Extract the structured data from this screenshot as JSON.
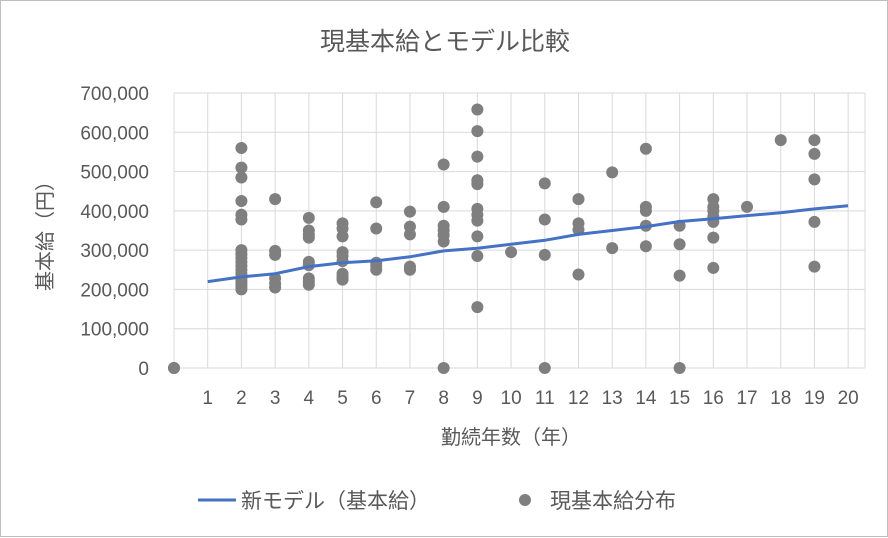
{
  "chart_data": {
    "type": "scatter",
    "title": "現基本給とモデル比較",
    "xlabel": "勤続年数（年）",
    "ylabel": "基本給（円）",
    "xlim": [
      0,
      20.5
    ],
    "ylim": [
      0,
      700000
    ],
    "xticks": [
      1,
      2,
      3,
      4,
      5,
      6,
      7,
      8,
      9,
      10,
      11,
      12,
      13,
      14,
      15,
      16,
      17,
      18,
      19,
      20
    ],
    "yticks": [
      0,
      100000,
      200000,
      300000,
      400000,
      500000,
      600000,
      700000
    ],
    "ytick_labels": [
      "0",
      "100,000",
      "200,000",
      "300,000",
      "400,000",
      "500,000",
      "600,000",
      "700,000"
    ],
    "grid": true,
    "legend": "bottom",
    "colors": {
      "line": "#4472c4",
      "points": "#7f7f7f",
      "grid": "#d9d9d9"
    },
    "series": [
      {
        "name": "新モデル（基本給）",
        "kind": "line",
        "x": [
          1,
          2,
          3,
          4,
          5,
          6,
          7,
          8,
          9,
          10,
          11,
          12,
          13,
          14,
          15,
          16,
          17,
          18,
          19,
          20
        ],
        "y": [
          220000,
          232000,
          240000,
          258000,
          268000,
          273000,
          283000,
          298000,
          305000,
          315000,
          325000,
          340000,
          350000,
          360000,
          373000,
          380000,
          388000,
          395000,
          405000,
          413000
        ]
      },
      {
        "name": "現基本給分布",
        "kind": "scatter",
        "points": [
          [
            0,
            0
          ],
          [
            0,
            0
          ],
          [
            2,
            560000
          ],
          [
            2,
            510000
          ],
          [
            2,
            485000
          ],
          [
            2,
            425000
          ],
          [
            2,
            390000
          ],
          [
            2,
            378000
          ],
          [
            2,
            300000
          ],
          [
            2,
            290000
          ],
          [
            2,
            280000
          ],
          [
            2,
            270000
          ],
          [
            2,
            260000
          ],
          [
            2,
            250000
          ],
          [
            2,
            240000
          ],
          [
            2,
            230000
          ],
          [
            2,
            222000
          ],
          [
            2,
            215000
          ],
          [
            2,
            208000
          ],
          [
            2,
            200000
          ],
          [
            3,
            430000
          ],
          [
            3,
            298000
          ],
          [
            3,
            288000
          ],
          [
            3,
            228000
          ],
          [
            3,
            215000
          ],
          [
            3,
            205000
          ],
          [
            4,
            382000
          ],
          [
            4,
            350000
          ],
          [
            4,
            340000
          ],
          [
            4,
            332000
          ],
          [
            4,
            270000
          ],
          [
            4,
            262000
          ],
          [
            4,
            228000
          ],
          [
            4,
            220000
          ],
          [
            4,
            212000
          ],
          [
            5,
            368000
          ],
          [
            5,
            355000
          ],
          [
            5,
            335000
          ],
          [
            5,
            295000
          ],
          [
            5,
            285000
          ],
          [
            5,
            272000
          ],
          [
            5,
            240000
          ],
          [
            5,
            232000
          ],
          [
            5,
            225000
          ],
          [
            6,
            422000
          ],
          [
            6,
            355000
          ],
          [
            6,
            268000
          ],
          [
            6,
            260000
          ],
          [
            6,
            250000
          ],
          [
            7,
            398000
          ],
          [
            7,
            360000
          ],
          [
            7,
            340000
          ],
          [
            7,
            258000
          ],
          [
            7,
            250000
          ],
          [
            8,
            518000
          ],
          [
            8,
            410000
          ],
          [
            8,
            362000
          ],
          [
            8,
            350000
          ],
          [
            8,
            338000
          ],
          [
            8,
            322000
          ],
          [
            8,
            0
          ],
          [
            9,
            658000
          ],
          [
            9,
            603000
          ],
          [
            9,
            538000
          ],
          [
            9,
            478000
          ],
          [
            9,
            468000
          ],
          [
            9,
            405000
          ],
          [
            9,
            390000
          ],
          [
            9,
            375000
          ],
          [
            9,
            335000
          ],
          [
            9,
            285000
          ],
          [
            9,
            155000
          ],
          [
            10,
            295000
          ],
          [
            11,
            470000
          ],
          [
            11,
            378000
          ],
          [
            11,
            288000
          ],
          [
            11,
            0
          ],
          [
            12,
            430000
          ],
          [
            12,
            368000
          ],
          [
            12,
            352000
          ],
          [
            12,
            238000
          ],
          [
            13,
            498000
          ],
          [
            13,
            305000
          ],
          [
            14,
            558000
          ],
          [
            14,
            410000
          ],
          [
            14,
            400000
          ],
          [
            14,
            362000
          ],
          [
            14,
            310000
          ],
          [
            15,
            362000
          ],
          [
            15,
            315000
          ],
          [
            15,
            235000
          ],
          [
            15,
            0
          ],
          [
            16,
            430000
          ],
          [
            16,
            410000
          ],
          [
            16,
            400000
          ],
          [
            16,
            385000
          ],
          [
            16,
            372000
          ],
          [
            16,
            332000
          ],
          [
            16,
            255000
          ],
          [
            17,
            410000
          ],
          [
            18,
            580000
          ],
          [
            19,
            580000
          ],
          [
            19,
            545000
          ],
          [
            19,
            480000
          ],
          [
            19,
            372000
          ],
          [
            19,
            258000
          ]
        ]
      }
    ]
  }
}
